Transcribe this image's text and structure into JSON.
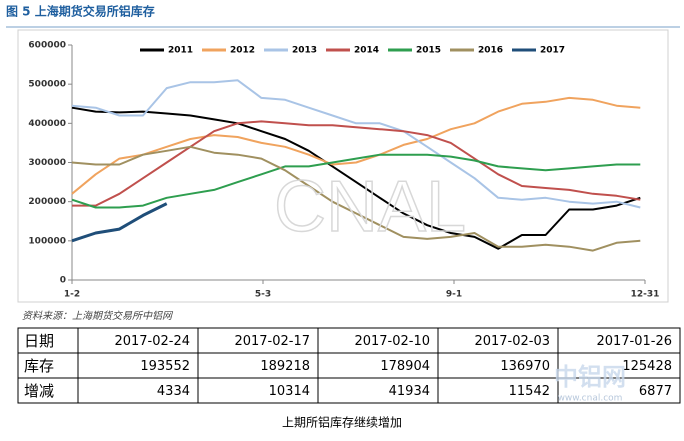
{
  "title": "图 5 上海期货交易所铝库存",
  "chart_data": {
    "type": "line",
    "x": [
      0,
      15,
      30,
      45,
      60,
      75,
      90,
      105,
      120,
      135,
      150,
      165,
      180,
      195,
      210,
      225,
      240,
      255,
      270,
      285,
      300,
      315,
      330,
      345,
      360
    ],
    "xlim": [
      0,
      363
    ],
    "xticks": [
      {
        "value": 0,
        "label": "1-2"
      },
      {
        "value": 121,
        "label": "5-3"
      },
      {
        "value": 242,
        "label": "9-1"
      },
      {
        "value": 363,
        "label": "12-31"
      }
    ],
    "ylim": [
      0,
      600000
    ],
    "yticks": [
      0,
      100000,
      200000,
      300000,
      400000,
      500000,
      600000
    ],
    "series": [
      {
        "name": "2011",
        "color": "#000000",
        "values": [
          440000,
          430000,
          428000,
          430000,
          425000,
          420000,
          410000,
          400000,
          380000,
          360000,
          330000,
          290000,
          250000,
          210000,
          170000,
          140000,
          120000,
          110000,
          80000,
          115000,
          115000,
          180000,
          180000,
          190000,
          210000
        ]
      },
      {
        "name": "2012",
        "color": "#f0a35e",
        "values": [
          220000,
          270000,
          310000,
          320000,
          340000,
          360000,
          370000,
          365000,
          350000,
          340000,
          320000,
          295000,
          300000,
          320000,
          345000,
          360000,
          385000,
          400000,
          430000,
          450000,
          455000,
          465000,
          460000,
          445000,
          440000
        ]
      },
      {
        "name": "2013",
        "color": "#a9c4e6",
        "values": [
          445000,
          440000,
          420000,
          420000,
          490000,
          505000,
          505000,
          510000,
          465000,
          460000,
          440000,
          420000,
          400000,
          400000,
          380000,
          340000,
          300000,
          260000,
          210000,
          205000,
          210000,
          200000,
          195000,
          200000,
          185000
        ]
      },
      {
        "name": "2014",
        "color": "#c0504d",
        "values": [
          190000,
          190000,
          220000,
          260000,
          300000,
          340000,
          380000,
          400000,
          405000,
          400000,
          395000,
          395000,
          390000,
          385000,
          380000,
          370000,
          350000,
          310000,
          270000,
          240000,
          235000,
          230000,
          220000,
          215000,
          205000
        ]
      },
      {
        "name": "2015",
        "color": "#2e9e4f",
        "values": [
          205000,
          185000,
          185000,
          190000,
          210000,
          220000,
          230000,
          250000,
          270000,
          290000,
          290000,
          300000,
          310000,
          320000,
          320000,
          320000,
          315000,
          305000,
          290000,
          285000,
          280000,
          285000,
          290000,
          295000,
          295000
        ]
      },
      {
        "name": "2016",
        "color": "#a09060",
        "values": [
          300000,
          295000,
          295000,
          320000,
          330000,
          340000,
          325000,
          320000,
          310000,
          280000,
          240000,
          200000,
          170000,
          140000,
          110000,
          105000,
          110000,
          120000,
          85000,
          85000,
          90000,
          85000,
          75000,
          95000,
          100000
        ]
      },
      {
        "name": "2017",
        "color": "#1f4e79",
        "values": [
          100000,
          120000,
          130000,
          165000,
          195000,
          null,
          null,
          null,
          null,
          null,
          null,
          null,
          null,
          null,
          null,
          null,
          null,
          null,
          null,
          null,
          null,
          null,
          null,
          null,
          null
        ]
      }
    ],
    "watermark": "CNAL"
  },
  "source": "资料来源：上海期货交易所中铝网",
  "table": {
    "header": [
      "日期",
      "2017-02-24",
      "2017-02-17",
      "2017-02-10",
      "2017-02-03",
      "2017-01-26"
    ],
    "rows": [
      [
        "库存",
        193552,
        189218,
        178904,
        136970,
        125428
      ],
      [
        "增减",
        4334,
        10314,
        41934,
        11542,
        6877
      ]
    ]
  },
  "logo": {
    "name": "中铝网",
    "url": "www.cnal.com"
  },
  "caption": "上期所铝库存继续增加"
}
